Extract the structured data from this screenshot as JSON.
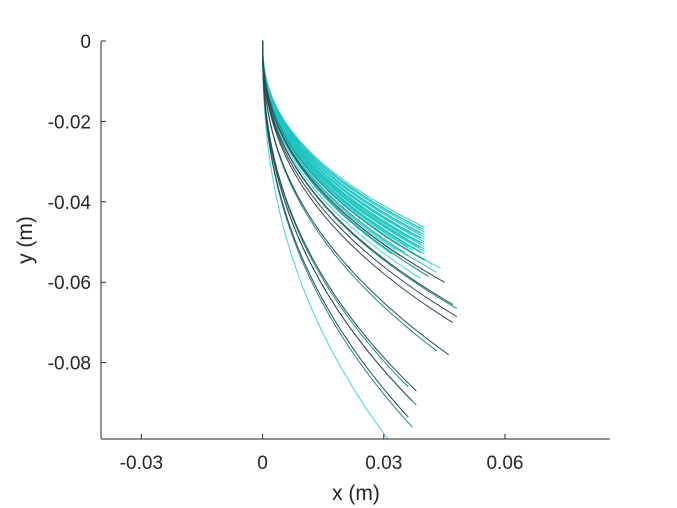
{
  "chart_data": {
    "type": "line",
    "title": "",
    "xlabel": "x (m)",
    "ylabel": "y (m)",
    "xlim": [
      -0.04,
      0.086
    ],
    "ylim": [
      -0.099,
      0
    ],
    "xticks": [
      -0.03,
      0,
      0.03,
      0.06
    ],
    "xtick_labels": [
      "-0.03",
      "0",
      "0.03",
      "0.06"
    ],
    "yticks": [
      0,
      -0.02,
      -0.04,
      -0.06,
      -0.08
    ],
    "ytick_labels": [
      "0",
      "-0.02",
      "-0.04",
      "-0.06",
      "-0.08"
    ],
    "grid": false,
    "legend": "none",
    "colors": {
      "main": "#1fc4c0",
      "dark": "#2d4a52",
      "mid": "#1a8a8c",
      "light": "#40d8d2"
    },
    "series": [
      {
        "color": "main",
        "end": [
          0.04,
          -0.0463
        ]
      },
      {
        "color": "main",
        "end": [
          0.04,
          -0.0469
        ]
      },
      {
        "color": "main",
        "end": [
          0.04,
          -0.0475
        ]
      },
      {
        "color": "main",
        "end": [
          0.04,
          -0.0481
        ]
      },
      {
        "color": "main",
        "end": [
          0.04,
          -0.0487
        ]
      },
      {
        "color": "main",
        "end": [
          0.04,
          -0.0493
        ]
      },
      {
        "color": "main",
        "end": [
          0.04,
          -0.0499
        ]
      },
      {
        "color": "main",
        "end": [
          0.04,
          -0.0505
        ]
      },
      {
        "color": "main",
        "end": [
          0.04,
          -0.0511
        ]
      },
      {
        "color": "main",
        "end": [
          0.04,
          -0.0517
        ]
      },
      {
        "color": "main",
        "end": [
          0.04,
          -0.0523
        ]
      },
      {
        "color": "main",
        "end": [
          0.04,
          -0.0529
        ]
      },
      {
        "color": "main",
        "end": [
          0.039,
          -0.0466
        ]
      },
      {
        "color": "main",
        "end": [
          0.039,
          -0.0478
        ]
      },
      {
        "color": "main",
        "end": [
          0.039,
          -0.049
        ]
      },
      {
        "color": "main",
        "end": [
          0.039,
          -0.0502
        ]
      },
      {
        "color": "main",
        "end": [
          0.039,
          -0.0514
        ]
      },
      {
        "color": "main",
        "end": [
          0.039,
          -0.0526
        ]
      },
      {
        "color": "main",
        "end": [
          0.038,
          -0.0472
        ]
      },
      {
        "color": "main",
        "end": [
          0.038,
          -0.0484
        ]
      },
      {
        "color": "main",
        "end": [
          0.038,
          -0.0496
        ]
      },
      {
        "color": "main",
        "end": [
          0.038,
          -0.0508
        ]
      },
      {
        "color": "main",
        "end": [
          0.038,
          -0.052
        ]
      },
      {
        "color": "main",
        "end": [
          0.038,
          -0.0532
        ]
      },
      {
        "color": "main",
        "end": [
          0.037,
          -0.048
        ]
      },
      {
        "color": "main",
        "end": [
          0.037,
          -0.05
        ]
      },
      {
        "color": "main",
        "end": [
          0.037,
          -0.052
        ]
      },
      {
        "color": "main",
        "end": [
          0.036,
          -0.049
        ]
      },
      {
        "color": "main",
        "end": [
          0.036,
          -0.0512
        ]
      },
      {
        "color": "main",
        "end": [
          0.036,
          -0.0535
        ]
      },
      {
        "color": "main",
        "end": [
          0.035,
          -0.05
        ]
      },
      {
        "color": "main",
        "end": [
          0.035,
          -0.0525
        ]
      },
      {
        "color": "main",
        "end": [
          0.034,
          -0.051
        ]
      },
      {
        "color": "main",
        "end": [
          0.034,
          -0.0535
        ]
      },
      {
        "color": "main",
        "end": [
          0.033,
          -0.052
        ]
      },
      {
        "color": "main",
        "end": [
          0.032,
          -0.053
        ]
      },
      {
        "color": "mid",
        "end": [
          0.04,
          -0.0545
        ]
      },
      {
        "color": "main",
        "end": [
          0.042,
          -0.0555
        ]
      },
      {
        "color": "light",
        "end": [
          0.044,
          -0.0565
        ]
      },
      {
        "color": "main",
        "end": [
          0.043,
          -0.0575
        ]
      },
      {
        "color": "mid",
        "end": [
          0.041,
          -0.0585
        ]
      },
      {
        "color": "light",
        "end": [
          0.039,
          -0.059
        ]
      },
      {
        "color": "dark",
        "end": [
          0.045,
          -0.06
        ]
      },
      {
        "color": "dark",
        "end": [
          0.047,
          -0.0655
        ]
      },
      {
        "color": "mid",
        "end": [
          0.048,
          -0.0665
        ]
      },
      {
        "color": "dark",
        "end": [
          0.048,
          -0.0685
        ]
      },
      {
        "color": "dark",
        "end": [
          0.047,
          -0.07
        ]
      },
      {
        "color": "mid",
        "end": [
          0.043,
          -0.077
        ]
      },
      {
        "color": "dark",
        "end": [
          0.046,
          -0.078
        ]
      },
      {
        "color": "mid",
        "end": [
          0.036,
          -0.086
        ]
      },
      {
        "color": "dark",
        "end": [
          0.038,
          -0.087
        ]
      },
      {
        "color": "dark",
        "end": [
          0.037,
          -0.0895
        ]
      },
      {
        "color": "mid",
        "end": [
          0.038,
          -0.0905
        ]
      },
      {
        "color": "dark",
        "end": [
          0.036,
          -0.0935
        ]
      },
      {
        "color": "mid",
        "end": [
          0.037,
          -0.096
        ]
      },
      {
        "color": "light",
        "end": [
          0.031,
          -0.099
        ]
      }
    ]
  }
}
